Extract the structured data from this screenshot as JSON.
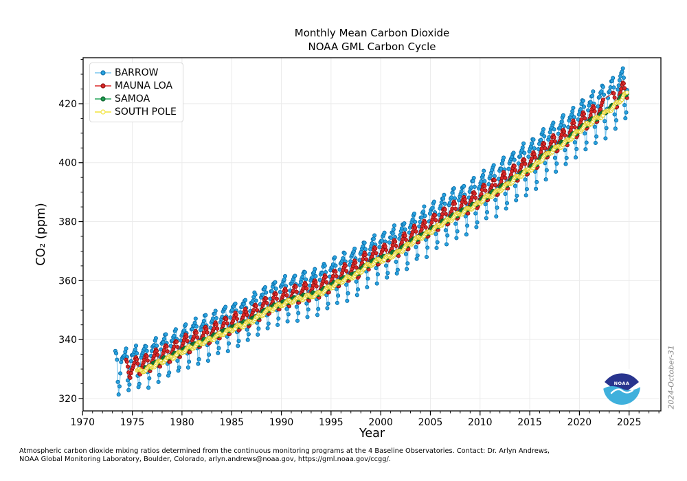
{
  "title": {
    "line1": "Monthly Mean Carbon Dioxide",
    "line2": "NOAA GML Carbon Cycle"
  },
  "axes": {
    "xlabel": "Year",
    "ylabel": "CO₂ (ppm)"
  },
  "timestamp": "2024-October-31",
  "footer": {
    "line1": "Atmospheric carbon dioxide mixing ratios determined from the continuous monitoring programs at the 4 Baseline Observatories. Contact:  Dr. Arlyn Andrews,",
    "line2": "NOAA Global Monitoring Laboratory, Boulder, Colorado, arlyn.andrews@noaa.gov, https://gml.noaa.gov/ccgg/."
  },
  "logo": {
    "text": "NOAA",
    "navy": "#28348e",
    "cyan": "#3fb0dc"
  },
  "chart_data": {
    "type": "line",
    "title": "Monthly Mean Carbon Dioxide — NOAA GML Carbon Cycle",
    "xlabel": "Year",
    "ylabel": "CO2 (ppm)",
    "xlim": [
      1970.05,
      2028.2
    ],
    "ylim": [
      315.8,
      435.6
    ],
    "xticks": [
      1970,
      1975,
      1980,
      1985,
      1990,
      1995,
      2000,
      2005,
      2010,
      2015,
      2020,
      2025
    ],
    "yticks": [
      320,
      340,
      360,
      380,
      400,
      420
    ],
    "x_minor_step": 1,
    "y_minor_step": 5,
    "grid": true,
    "grid_color": "#ebebeb",
    "legend_position": "upper left",
    "reference_annual_means": {
      "description": "Mauna Loa annual mean CO2 (ppm); other stations are offsets from this trend; monthly values = trend + offset + seasonal cycle",
      "start_year": 1973,
      "values": [
        329.4,
        330.1,
        331.1,
        332.0,
        333.8,
        335.4,
        336.8,
        338.8,
        340.1,
        341.5,
        343.1,
        344.7,
        346.1,
        347.4,
        349.2,
        351.6,
        353.1,
        354.4,
        355.6,
        356.4,
        357.1,
        358.8,
        360.8,
        362.6,
        363.7,
        366.7,
        368.4,
        369.5,
        371.1,
        373.2,
        375.8,
        377.5,
        379.8,
        381.9,
        383.8,
        385.6,
        387.4,
        389.9,
        391.7,
        393.9,
        396.5,
        398.6,
        400.8,
        404.2,
        406.6,
        408.5,
        411.4,
        414.2,
        416.4,
        418.6,
        421.1,
        424.6,
        427.2
      ]
    },
    "series": [
      {
        "name": "BARROW",
        "start": 1973.29,
        "end": 2024.79,
        "offset_ppm": 1.1,
        "seasonal_cycle_ppm": [
          3.4,
          4.1,
          5.0,
          5.8,
          6.1,
          3.0,
          -5.3,
          -10.4,
          -8.4,
          -2.0,
          1.2,
          2.8
        ],
        "amp_scale": [
          0.85,
          1.1
        ],
        "scatter_ppm": 0.7,
        "marker": "filled-circle",
        "color": "#29a3e0",
        "edge_color": "#0c6ea8",
        "line_color": "#7ac6ee",
        "line_width": 1.2
      },
      {
        "name": "MAUNA LOA",
        "start": 1974.37,
        "end": 2024.79,
        "offset_ppm": 0.0,
        "seasonal_cycle_ppm": [
          -0.1,
          0.6,
          1.4,
          2.5,
          3.0,
          2.3,
          0.7,
          -1.5,
          -3.1,
          -3.2,
          -2.1,
          -0.9
        ],
        "amp_scale": [
          1.0,
          1.0
        ],
        "scatter_ppm": 0.25,
        "gaps": [
          [
            2022.45,
            2023.35
          ]
        ],
        "marker": "filled-circle",
        "color": "#dc2828",
        "edge_color": "#8c1010",
        "line_color": "#dc2828",
        "line_width": 1.0
      },
      {
        "name": "SAMOA",
        "start": 1976.29,
        "end": 2024.79,
        "offset_ppm": -1.6,
        "seasonal_cycle_ppm": [
          0.3,
          0.4,
          0.5,
          0.5,
          0.3,
          0.1,
          -0.1,
          -0.3,
          -0.5,
          -0.5,
          -0.4,
          -0.1
        ],
        "amp_scale": [
          1.0,
          1.0
        ],
        "scatter_ppm": 0.25,
        "marker": "filled-circle",
        "color": "#1e9e50",
        "edge_color": "#0b5e2c",
        "line_color": "#25a65a",
        "line_width": 1.0
      },
      {
        "name": "SOUTH POLE",
        "start": 1975.45,
        "end": 2024.79,
        "offset_ppm": -2.0,
        "seasonal_cycle_ppm": [
          -0.5,
          -0.6,
          -0.5,
          -0.3,
          -0.1,
          0.3,
          0.5,
          0.6,
          0.6,
          0.4,
          0.1,
          -0.2
        ],
        "amp_scale": [
          1.0,
          1.0
        ],
        "scatter_ppm": 0.2,
        "marker": "open-circle",
        "color": "#fffce0",
        "edge_color": "#e0cf2a",
        "line_color": "#f2e43c",
        "line_width": 1.0
      }
    ]
  }
}
